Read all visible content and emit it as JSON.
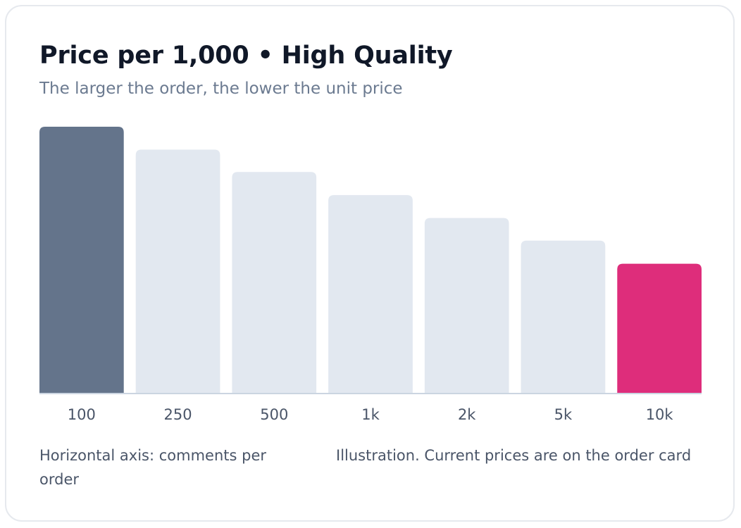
{
  "title": "Price per 1,000 • High Quality",
  "subtitle": "The larger the order, the lower the unit price",
  "notes": {
    "axis_note": "Horizontal axis: comments per order",
    "disclaimer": "Illustration. Current prices are on the order card"
  },
  "colors": {
    "first_bar": "#64748b",
    "middle_bars": "#e2e8f0",
    "last_bar": "#de2d7b",
    "baseline": "#cbd5e1"
  },
  "chart_data": {
    "type": "bar",
    "title": "Price per 1,000 • High Quality",
    "subtitle": "The larger the order, the lower the unit price",
    "xlabel": "",
    "ylabel": "",
    "categories": [
      "100",
      "250",
      "500",
      "1k",
      "2k",
      "5k",
      "10k"
    ],
    "values": [
      100,
      91.4,
      83,
      74.3,
      65.7,
      57.2,
      48.5
    ],
    "ylim": [
      0,
      100
    ],
    "grid": false,
    "legend": "none",
    "highlight": {
      "first": "100",
      "last": "10k"
    }
  }
}
